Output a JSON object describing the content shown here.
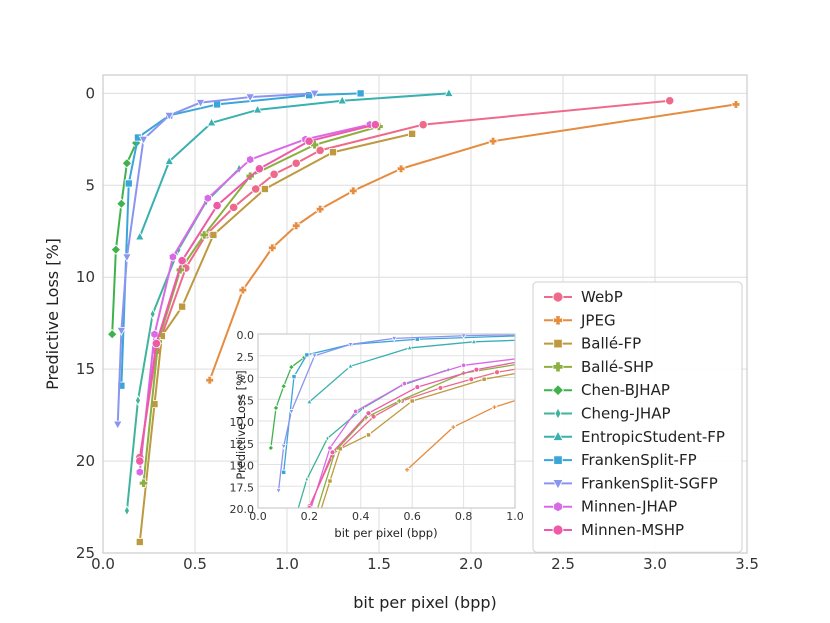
{
  "chart_data": {
    "type": "line",
    "xlabel": "bit per pixel (bpp)",
    "ylabel": "Predictive Loss [%]",
    "xlim": [
      0,
      3.5
    ],
    "ylim": [
      25,
      -1
    ],
    "xticks": [
      "0.0",
      "0.5",
      "1.0",
      "1.5",
      "2.0",
      "2.5",
      "3.0",
      "3.5"
    ],
    "yticks": [
      "0",
      "5",
      "10",
      "15",
      "20",
      "25"
    ],
    "inset": {
      "xlim": [
        0,
        1.0
      ],
      "ylim": [
        20,
        0
      ],
      "xticks": [
        "0.0",
        "0.2",
        "0.4",
        "0.6",
        "0.8",
        "1.0"
      ],
      "yticks": [
        "0.0",
        "2.5",
        "5.0",
        "7.5",
        "10.0",
        "12.5",
        "15.0",
        "17.5",
        "20.0"
      ],
      "xlabel": "bit per pixel (bpp)",
      "ylabel": "Predictive Loss [%]"
    },
    "legend_position": "lower-right",
    "series": [
      {
        "name": "WebP",
        "color": "#ee6a8a",
        "marker": "circle",
        "x": [
          0.2,
          0.29,
          0.45,
          0.56,
          0.71,
          0.83,
          0.93,
          1.05,
          1.18,
          1.74,
          3.08
        ],
        "y": [
          19.8,
          14.0,
          9.5,
          7.7,
          6.2,
          5.2,
          4.4,
          3.8,
          3.1,
          1.7,
          0.4
        ]
      },
      {
        "name": "JPEG",
        "color": "#e58c3f",
        "marker": "x",
        "x": [
          0.58,
          0.76,
          0.92,
          1.05,
          1.18,
          1.36,
          1.62,
          2.12,
          3.44
        ],
        "y": [
          15.6,
          10.7,
          8.4,
          7.2,
          6.3,
          5.3,
          4.1,
          2.6,
          0.6
        ]
      },
      {
        "name": "Ballé-FP",
        "color": "#bd9a3f",
        "marker": "square",
        "x": [
          0.2,
          0.28,
          0.32,
          0.43,
          0.6,
          0.88,
          1.25,
          1.68
        ],
        "y": [
          24.4,
          16.9,
          13.2,
          11.6,
          7.7,
          5.2,
          3.2,
          2.2
        ]
      },
      {
        "name": "Ballé-SHP",
        "color": "#8caf3f",
        "marker": "plus",
        "x": [
          0.22,
          0.3,
          0.42,
          0.55,
          0.8,
          1.15,
          1.5
        ],
        "y": [
          21.2,
          13.5,
          9.6,
          7.7,
          4.5,
          2.8,
          1.8
        ]
      },
      {
        "name": "Chen-BJHAP",
        "color": "#3fb24e",
        "marker": "diamond",
        "x": [
          0.05,
          0.07,
          0.1,
          0.13,
          0.18
        ],
        "y": [
          13.1,
          8.5,
          6.0,
          3.8,
          2.7
        ]
      },
      {
        "name": "Cheng-JHAP",
        "color": "#3fb49a",
        "marker": "thin_diamond",
        "x": [
          0.13,
          0.19,
          0.27,
          0.41,
          0.56,
          0.74
        ],
        "y": [
          22.7,
          16.7,
          12.0,
          8.5,
          5.9,
          4.1
        ]
      },
      {
        "name": "EntropicStudent-FP",
        "color": "#3ab0b0",
        "marker": "triangle-up",
        "x": [
          0.2,
          0.36,
          0.59,
          0.84,
          1.3,
          1.88
        ],
        "y": [
          7.8,
          3.7,
          1.6,
          0.9,
          0.4,
          0.0
        ]
      },
      {
        "name": "FrankenSplit-FP",
        "color": "#3aa5d8",
        "marker": "square",
        "x": [
          0.1,
          0.14,
          0.19,
          0.36,
          0.62,
          1.12,
          1.4
        ],
        "y": [
          15.9,
          4.9,
          2.4,
          1.2,
          0.6,
          0.1,
          0.0
        ]
      },
      {
        "name": "FrankenSplit-SGFP",
        "color": "#8a95f0",
        "marker": "triangle-down",
        "x": [
          0.08,
          0.1,
          0.13,
          0.22,
          0.36,
          0.53,
          0.8,
          1.15
        ],
        "y": [
          18.0,
          12.9,
          8.9,
          2.5,
          1.2,
          0.5,
          0.2,
          0.0
        ]
      },
      {
        "name": "Minnen-JHAP",
        "color": "#d86ae8",
        "marker": "hexagon",
        "x": [
          0.2,
          0.28,
          0.38,
          0.57,
          0.8,
          1.1,
          1.45
        ],
        "y": [
          20.6,
          13.1,
          8.9,
          5.7,
          3.6,
          2.5,
          1.7
        ]
      },
      {
        "name": "Minnen-MSHP",
        "color": "#ee5aa8",
        "marker": "circle",
        "x": [
          0.2,
          0.29,
          0.43,
          0.62,
          0.85,
          1.12,
          1.48
        ],
        "y": [
          20.0,
          13.6,
          9.1,
          6.1,
          4.1,
          2.6,
          1.7
        ]
      }
    ]
  }
}
